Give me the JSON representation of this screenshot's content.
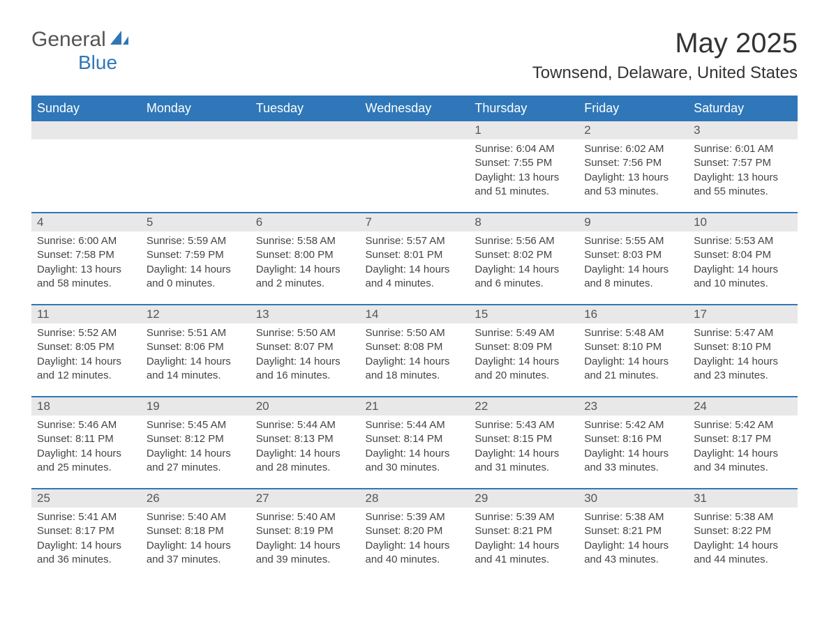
{
  "logo": {
    "general": "General",
    "blue": "Blue"
  },
  "title": "May 2025",
  "location": "Townsend, Delaware, United States",
  "colors": {
    "header_bg": "#2f77b8",
    "header_text": "#ffffff",
    "daynum_bg": "#e8e8e8",
    "border": "#2f77b8",
    "logo_blue": "#2f77b8"
  },
  "weekdays": [
    "Sunday",
    "Monday",
    "Tuesday",
    "Wednesday",
    "Thursday",
    "Friday",
    "Saturday"
  ],
  "labels": {
    "sunrise": "Sunrise: ",
    "sunset": "Sunset: ",
    "daylight": "Daylight: "
  },
  "weeks": [
    [
      null,
      null,
      null,
      null,
      {
        "n": "1",
        "sr": "6:04 AM",
        "ss": "7:55 PM",
        "dl": "13 hours and 51 minutes."
      },
      {
        "n": "2",
        "sr": "6:02 AM",
        "ss": "7:56 PM",
        "dl": "13 hours and 53 minutes."
      },
      {
        "n": "3",
        "sr": "6:01 AM",
        "ss": "7:57 PM",
        "dl": "13 hours and 55 minutes."
      }
    ],
    [
      {
        "n": "4",
        "sr": "6:00 AM",
        "ss": "7:58 PM",
        "dl": "13 hours and 58 minutes."
      },
      {
        "n": "5",
        "sr": "5:59 AM",
        "ss": "7:59 PM",
        "dl": "14 hours and 0 minutes."
      },
      {
        "n": "6",
        "sr": "5:58 AM",
        "ss": "8:00 PM",
        "dl": "14 hours and 2 minutes."
      },
      {
        "n": "7",
        "sr": "5:57 AM",
        "ss": "8:01 PM",
        "dl": "14 hours and 4 minutes."
      },
      {
        "n": "8",
        "sr": "5:56 AM",
        "ss": "8:02 PM",
        "dl": "14 hours and 6 minutes."
      },
      {
        "n": "9",
        "sr": "5:55 AM",
        "ss": "8:03 PM",
        "dl": "14 hours and 8 minutes."
      },
      {
        "n": "10",
        "sr": "5:53 AM",
        "ss": "8:04 PM",
        "dl": "14 hours and 10 minutes."
      }
    ],
    [
      {
        "n": "11",
        "sr": "5:52 AM",
        "ss": "8:05 PM",
        "dl": "14 hours and 12 minutes."
      },
      {
        "n": "12",
        "sr": "5:51 AM",
        "ss": "8:06 PM",
        "dl": "14 hours and 14 minutes."
      },
      {
        "n": "13",
        "sr": "5:50 AM",
        "ss": "8:07 PM",
        "dl": "14 hours and 16 minutes."
      },
      {
        "n": "14",
        "sr": "5:50 AM",
        "ss": "8:08 PM",
        "dl": "14 hours and 18 minutes."
      },
      {
        "n": "15",
        "sr": "5:49 AM",
        "ss": "8:09 PM",
        "dl": "14 hours and 20 minutes."
      },
      {
        "n": "16",
        "sr": "5:48 AM",
        "ss": "8:10 PM",
        "dl": "14 hours and 21 minutes."
      },
      {
        "n": "17",
        "sr": "5:47 AM",
        "ss": "8:10 PM",
        "dl": "14 hours and 23 minutes."
      }
    ],
    [
      {
        "n": "18",
        "sr": "5:46 AM",
        "ss": "8:11 PM",
        "dl": "14 hours and 25 minutes."
      },
      {
        "n": "19",
        "sr": "5:45 AM",
        "ss": "8:12 PM",
        "dl": "14 hours and 27 minutes."
      },
      {
        "n": "20",
        "sr": "5:44 AM",
        "ss": "8:13 PM",
        "dl": "14 hours and 28 minutes."
      },
      {
        "n": "21",
        "sr": "5:44 AM",
        "ss": "8:14 PM",
        "dl": "14 hours and 30 minutes."
      },
      {
        "n": "22",
        "sr": "5:43 AM",
        "ss": "8:15 PM",
        "dl": "14 hours and 31 minutes."
      },
      {
        "n": "23",
        "sr": "5:42 AM",
        "ss": "8:16 PM",
        "dl": "14 hours and 33 minutes."
      },
      {
        "n": "24",
        "sr": "5:42 AM",
        "ss": "8:17 PM",
        "dl": "14 hours and 34 minutes."
      }
    ],
    [
      {
        "n": "25",
        "sr": "5:41 AM",
        "ss": "8:17 PM",
        "dl": "14 hours and 36 minutes."
      },
      {
        "n": "26",
        "sr": "5:40 AM",
        "ss": "8:18 PM",
        "dl": "14 hours and 37 minutes."
      },
      {
        "n": "27",
        "sr": "5:40 AM",
        "ss": "8:19 PM",
        "dl": "14 hours and 39 minutes."
      },
      {
        "n": "28",
        "sr": "5:39 AM",
        "ss": "8:20 PM",
        "dl": "14 hours and 40 minutes."
      },
      {
        "n": "29",
        "sr": "5:39 AM",
        "ss": "8:21 PM",
        "dl": "14 hours and 41 minutes."
      },
      {
        "n": "30",
        "sr": "5:38 AM",
        "ss": "8:21 PM",
        "dl": "14 hours and 43 minutes."
      },
      {
        "n": "31",
        "sr": "5:38 AM",
        "ss": "8:22 PM",
        "dl": "14 hours and 44 minutes."
      }
    ]
  ]
}
